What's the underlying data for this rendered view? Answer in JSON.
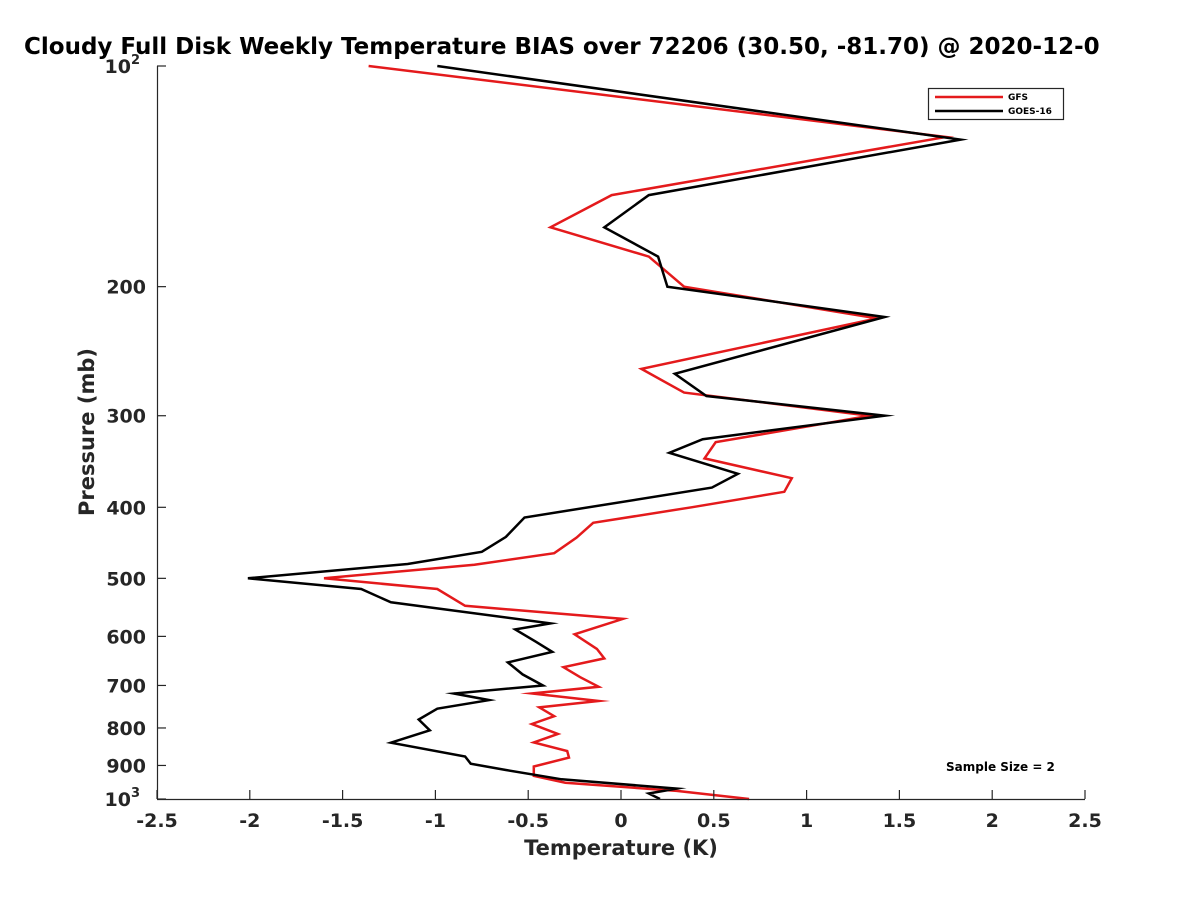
{
  "chart_data": {
    "type": "line",
    "title": "Cloudy Full Disk Weekly Temperature BIAS over 72206 (30.50, -81.70) @ 2020-12-0",
    "xlabel": "Temperature (K)",
    "ylabel": "Pressure (mb)",
    "xlim": [
      -2.5,
      2.5
    ],
    "ylim": [
      100,
      1000
    ],
    "yscale": "log",
    "yreversed": true,
    "x_ticks": [
      "-2.5",
      "-2",
      "-1.5",
      "-1",
      "-0.5",
      "0",
      "0.5",
      "1",
      "1.5",
      "2",
      "2.5"
    ],
    "x_tick_values": [
      -2.5,
      -2,
      -1.5,
      -1,
      -0.5,
      0,
      0.5,
      1,
      1.5,
      2,
      2.5
    ],
    "y_ticks": [
      {
        "value": 100,
        "label": "10",
        "sup": "2"
      },
      {
        "value": 200,
        "label": "200"
      },
      {
        "value": 300,
        "label": "300"
      },
      {
        "value": 400,
        "label": "400"
      },
      {
        "value": 500,
        "label": "500"
      },
      {
        "value": 600,
        "label": "600"
      },
      {
        "value": 700,
        "label": "700"
      },
      {
        "value": 800,
        "label": "800"
      },
      {
        "value": 900,
        "label": "900"
      },
      {
        "value": 1000,
        "label": "10",
        "sup": "3"
      }
    ],
    "legend": {
      "position": "top-right"
    },
    "annotation": "Sample Size = 2",
    "series": [
      {
        "name": "GFS",
        "color": "#e41a1c",
        "points": [
          [
            -1.36,
            100
          ],
          [
            1.75,
            125
          ],
          [
            -0.05,
            150
          ],
          [
            -0.38,
            166
          ],
          [
            0.15,
            182
          ],
          [
            0.34,
            200
          ],
          [
            1.38,
            221
          ],
          [
            0.11,
            259
          ],
          [
            0.34,
            279
          ],
          [
            1.34,
            300
          ],
          [
            0.51,
            326
          ],
          [
            0.45,
            343
          ],
          [
            0.92,
            365
          ],
          [
            0.88,
            381
          ],
          [
            0.38,
            400
          ],
          [
            -0.15,
            420
          ],
          [
            -0.24,
            440
          ],
          [
            -0.36,
            462
          ],
          [
            -0.79,
            479
          ],
          [
            -1.6,
            500
          ],
          [
            -0.99,
            517
          ],
          [
            -0.84,
            545
          ],
          [
            0.01,
            568
          ],
          [
            -0.25,
            596
          ],
          [
            -0.13,
            624
          ],
          [
            -0.09,
            643
          ],
          [
            -0.31,
            661
          ],
          [
            -0.22,
            682
          ],
          [
            -0.12,
            703
          ],
          [
            -0.48,
            718
          ],
          [
            -0.12,
            735
          ],
          [
            -0.44,
            750
          ],
          [
            -0.36,
            771
          ],
          [
            -0.48,
            790
          ],
          [
            -0.34,
            815
          ],
          [
            -0.47,
            837
          ],
          [
            -0.29,
            860
          ],
          [
            -0.28,
            878
          ],
          [
            -0.47,
            903
          ],
          [
            -0.47,
            930
          ],
          [
            -0.3,
            950
          ],
          [
            0.3,
            975
          ],
          [
            0.69,
            1000
          ]
        ]
      },
      {
        "name": "GOES-16",
        "color": "#000000",
        "points": [
          [
            -0.99,
            100
          ],
          [
            1.83,
            126
          ],
          [
            0.15,
            150
          ],
          [
            -0.09,
            166
          ],
          [
            0.2,
            182
          ],
          [
            0.25,
            200
          ],
          [
            1.42,
            220
          ],
          [
            0.29,
            263
          ],
          [
            0.46,
            282
          ],
          [
            1.42,
            300
          ],
          [
            0.44,
            323
          ],
          [
            0.26,
            337
          ],
          [
            0.63,
            360
          ],
          [
            0.49,
            376
          ],
          [
            -0.52,
            413
          ],
          [
            -0.62,
            439
          ],
          [
            -0.75,
            460
          ],
          [
            -1.15,
            478
          ],
          [
            -2.01,
            500
          ],
          [
            -1.4,
            517
          ],
          [
            -1.24,
            539
          ],
          [
            -0.38,
            576
          ],
          [
            -0.57,
            587
          ],
          [
            -0.46,
            610
          ],
          [
            -0.37,
            630
          ],
          [
            -0.61,
            651
          ],
          [
            -0.53,
            676
          ],
          [
            -0.42,
            700
          ],
          [
            -0.9,
            718
          ],
          [
            -0.71,
            733
          ],
          [
            -0.99,
            753
          ],
          [
            -1.09,
            779
          ],
          [
            -1.03,
            806
          ],
          [
            -1.24,
            838
          ],
          [
            -0.84,
            875
          ],
          [
            -0.81,
            895
          ],
          [
            -0.62,
            913
          ],
          [
            -0.32,
            940
          ],
          [
            0.3,
            968
          ],
          [
            0.15,
            983
          ],
          [
            0.21,
            1000
          ]
        ]
      }
    ]
  }
}
